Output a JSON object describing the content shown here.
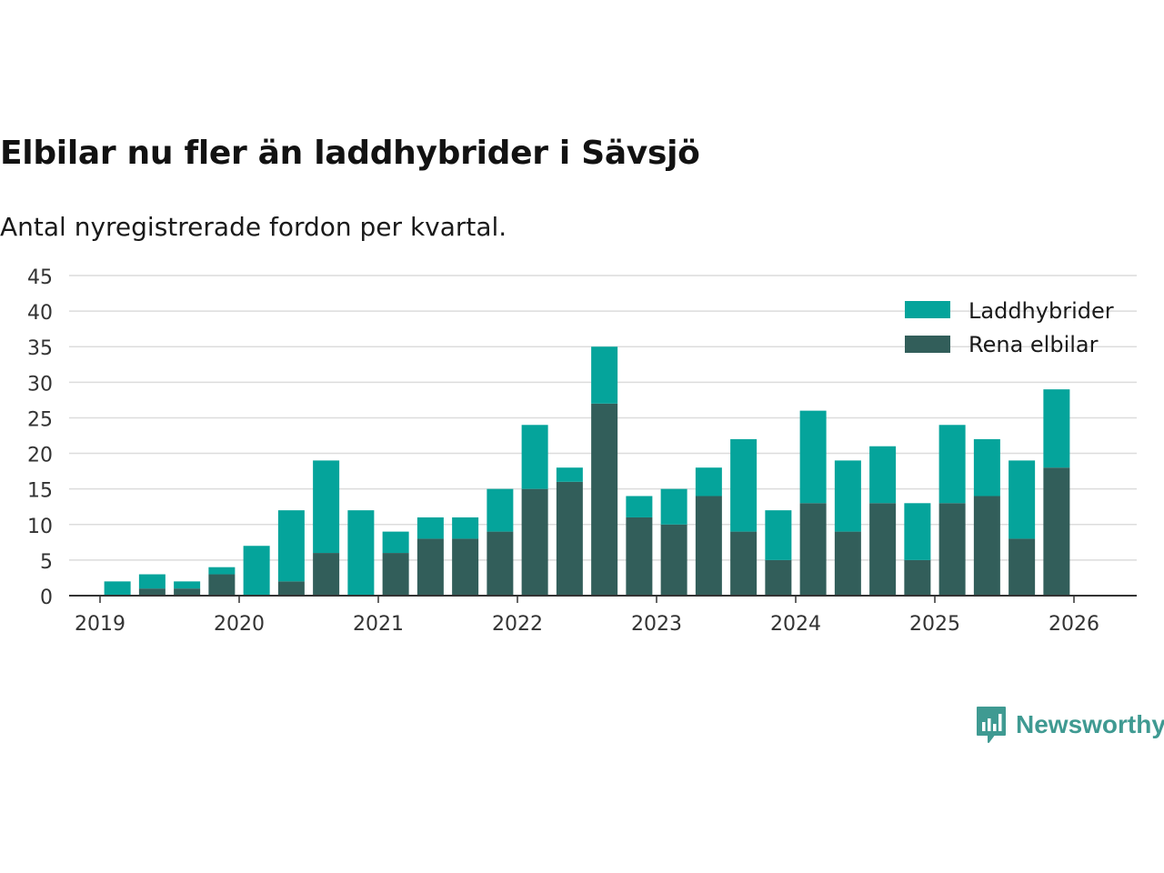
{
  "title": "Elbilar nu fler än laddhybrider i Sävsjö",
  "subtitle": "Antal nyregistrerade fordon per kvartal.",
  "brand": "Newsworthy",
  "colors": {
    "laddhybrider": "#05a49b",
    "rena": "#325e5a",
    "grid": "#dcdcdc",
    "axis": "#333333",
    "logo": "#3f9a92"
  },
  "chart_data": {
    "type": "bar",
    "stacked": true,
    "title": "Elbilar nu fler än laddhybrider i Sävsjö",
    "subtitle": "Antal nyregistrerade fordon per kvartal.",
    "xlabel": "",
    "ylabel": "",
    "ylim": [
      0,
      45
    ],
    "yticks": [
      0,
      5,
      10,
      15,
      20,
      25,
      30,
      35,
      40,
      45
    ],
    "xtick_labels": [
      "2019",
      "2020",
      "2021",
      "2022",
      "2023",
      "2024",
      "2025",
      "2026"
    ],
    "legend_position": "top-right",
    "categories": [
      "2019 Q1",
      "2019 Q2",
      "2019 Q3",
      "2019 Q4",
      "2020 Q1",
      "2020 Q2",
      "2020 Q3",
      "2020 Q4",
      "2021 Q1",
      "2021 Q2",
      "2021 Q3",
      "2021 Q4",
      "2022 Q1",
      "2022 Q2",
      "2022 Q3",
      "2022 Q4",
      "2023 Q1",
      "2023 Q2",
      "2023 Q3",
      "2023 Q4",
      "2024 Q1",
      "2024 Q2",
      "2024 Q3",
      "2024 Q4",
      "2025 Q1",
      "2025 Q2",
      "2025 Q3",
      "2025 Q4"
    ],
    "series": [
      {
        "name": "Rena elbilar",
        "values": [
          0,
          1,
          1,
          3,
          0,
          2,
          6,
          0,
          6,
          8,
          8,
          9,
          15,
          16,
          27,
          11,
          10,
          14,
          9,
          5,
          13,
          9,
          13,
          5,
          13,
          14,
          8,
          18
        ]
      },
      {
        "name": "Laddhybrider",
        "values": [
          2,
          2,
          1,
          1,
          7,
          10,
          13,
          12,
          3,
          3,
          3,
          6,
          9,
          2,
          8,
          3,
          5,
          4,
          13,
          7,
          13,
          10,
          8,
          8,
          11,
          8,
          11,
          11
        ]
      }
    ]
  }
}
